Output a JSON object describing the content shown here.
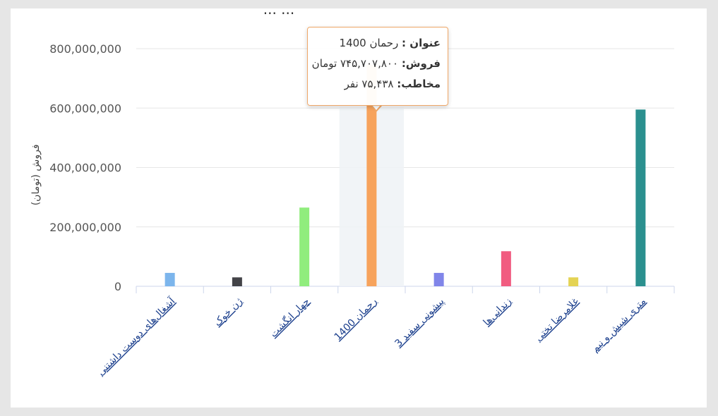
{
  "chart_data": {
    "type": "bar",
    "title": "... ...",
    "ylabel": "فروش (تومان)",
    "xlabel": "",
    "ylim": [
      0,
      800000000
    ],
    "yticks": [
      0,
      200000000,
      400000000,
      600000000,
      800000000
    ],
    "ytick_labels": [
      "0",
      "200,000,000",
      "400,000,000",
      "600,000,000",
      "800,000,000"
    ],
    "categories": [
      "آشغال‌های دوست داشتنی",
      "ژن خوک",
      "چهار انگشت",
      "رحمان 1400",
      "پیشونی سفید 3",
      "زندانی‌ها",
      "غلامرضا تختی",
      "متری شیش و نیم"
    ],
    "values": [
      45000000,
      30000000,
      265000000,
      745707800,
      45000000,
      118000000,
      30000000,
      595000000
    ],
    "colors": [
      "#7cb5ec",
      "#434348",
      "#90ed7d",
      "#f7a35c",
      "#8085e9",
      "#f15c80",
      "#e4d354",
      "#2b908f"
    ],
    "grid": true,
    "highlight_index": 3
  },
  "tooltip": {
    "title_label": "عنوان :",
    "title_value": "رحمان 1400",
    "sales_label": "فروش:",
    "sales_value": "۷۴۵,۷۰۷,۸۰۰ تومان",
    "audience_label": "مخاطب:",
    "audience_value": "۷۵,۴۳۸ نفر"
  }
}
